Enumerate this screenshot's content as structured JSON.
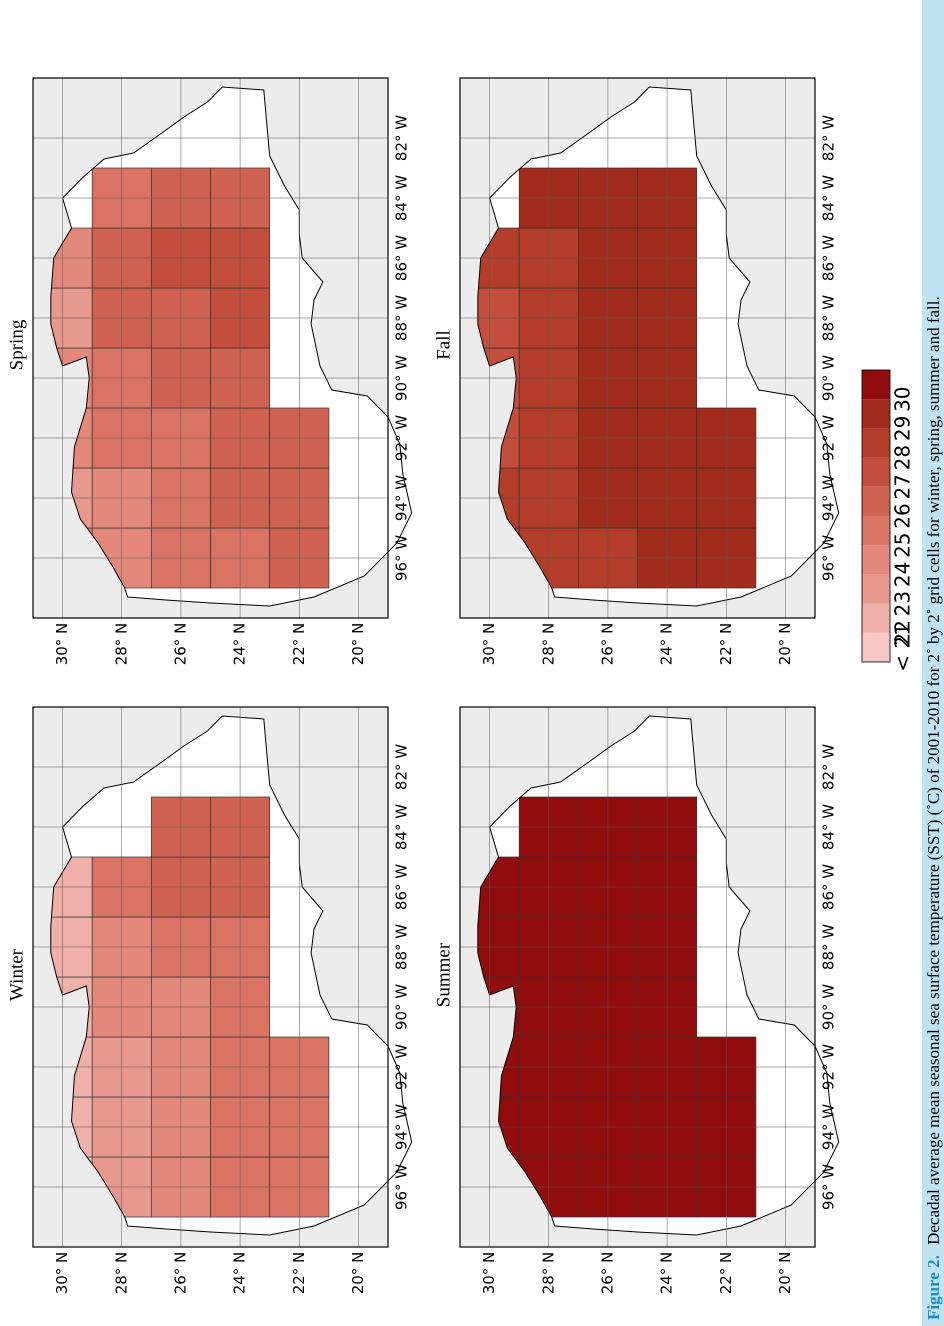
{
  "caption": {
    "label": "Figure 2.",
    "text": "Decadal average mean seasonal sea surface temperature (SST) (˚C) of 2001-2010 for 2˚ by 2˚ grid cells for winter, spring, summer and fall."
  },
  "colors": {
    "caption_bar": "#bfe3f2",
    "land": "#ececec",
    "scale": [
      "#f6c7c4",
      "#eeb0a8",
      "#e8998f",
      "#e2897c",
      "#d97464",
      "#cf6250",
      "#c24e3b",
      "#b43d2a",
      "#a12c1b",
      "#910c0c"
    ]
  },
  "legend": {
    "labels": [
      "< 21",
      "22",
      "23",
      "24",
      "25",
      "26",
      "27",
      "28",
      "29",
      "30"
    ]
  },
  "axes": {
    "lon_ticks": [
      "96° W",
      "94° W",
      "92° W",
      "90° W",
      "88° W",
      "86° W",
      "84° W",
      "82° W"
    ],
    "lat_ticks": [
      "30° N",
      "28° N",
      "26° N",
      "24° N",
      "22° N",
      "20° N"
    ]
  },
  "panels": [
    {
      "title": "Winter",
      "grid": [
        [
          0,
          1,
          1,
          1,
          1,
          1,
          null
        ],
        [
          2,
          2,
          2,
          3,
          3,
          4,
          null
        ],
        [
          3,
          3,
          3,
          3,
          4,
          5,
          5
        ],
        [
          4,
          4,
          4,
          4,
          4,
          5,
          5
        ],
        [
          4,
          4,
          4,
          null,
          null,
          null,
          null
        ]
      ]
    },
    {
      "title": "Spring",
      "grid": [
        [
          3,
          2,
          3,
          3,
          2,
          3,
          null
        ],
        [
          3,
          3,
          4,
          4,
          5,
          5,
          4
        ],
        [
          4,
          4,
          4,
          5,
          5,
          6,
          5
        ],
        [
          4,
          5,
          5,
          5,
          6,
          6,
          5
        ],
        [
          5,
          5,
          5,
          null,
          null,
          null,
          null
        ]
      ]
    },
    {
      "title": "Summer",
      "grid": [
        [
          9,
          9,
          9,
          9,
          9,
          9,
          null
        ],
        [
          9,
          9,
          9,
          9,
          9,
          9,
          9
        ],
        [
          9,
          9,
          9,
          9,
          9,
          9,
          9
        ],
        [
          9,
          9,
          9,
          9,
          9,
          9,
          9
        ],
        [
          9,
          9,
          9,
          null,
          null,
          null,
          null
        ]
      ]
    },
    {
      "title": "Fall",
      "grid": [
        [
          7,
          7,
          6,
          6,
          6,
          7,
          null
        ],
        [
          7,
          7,
          7,
          7,
          7,
          7,
          8
        ],
        [
          7,
          8,
          8,
          8,
          8,
          8,
          8
        ],
        [
          8,
          8,
          8,
          8,
          8,
          8,
          8
        ],
        [
          8,
          8,
          8,
          null,
          null,
          null,
          null
        ]
      ]
    }
  ]
}
